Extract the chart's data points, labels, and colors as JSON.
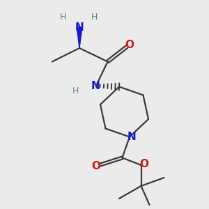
{
  "background_color": "#ebebeb",
  "bond_color": "#3a3a3a",
  "N_color": "#1a1acc",
  "O_color": "#cc1a1a",
  "H_color": "#5a8888",
  "figsize": [
    3.0,
    3.0
  ],
  "dpi": 100,
  "xlim": [
    0,
    10
  ],
  "ylim": [
    0,
    10
  ]
}
